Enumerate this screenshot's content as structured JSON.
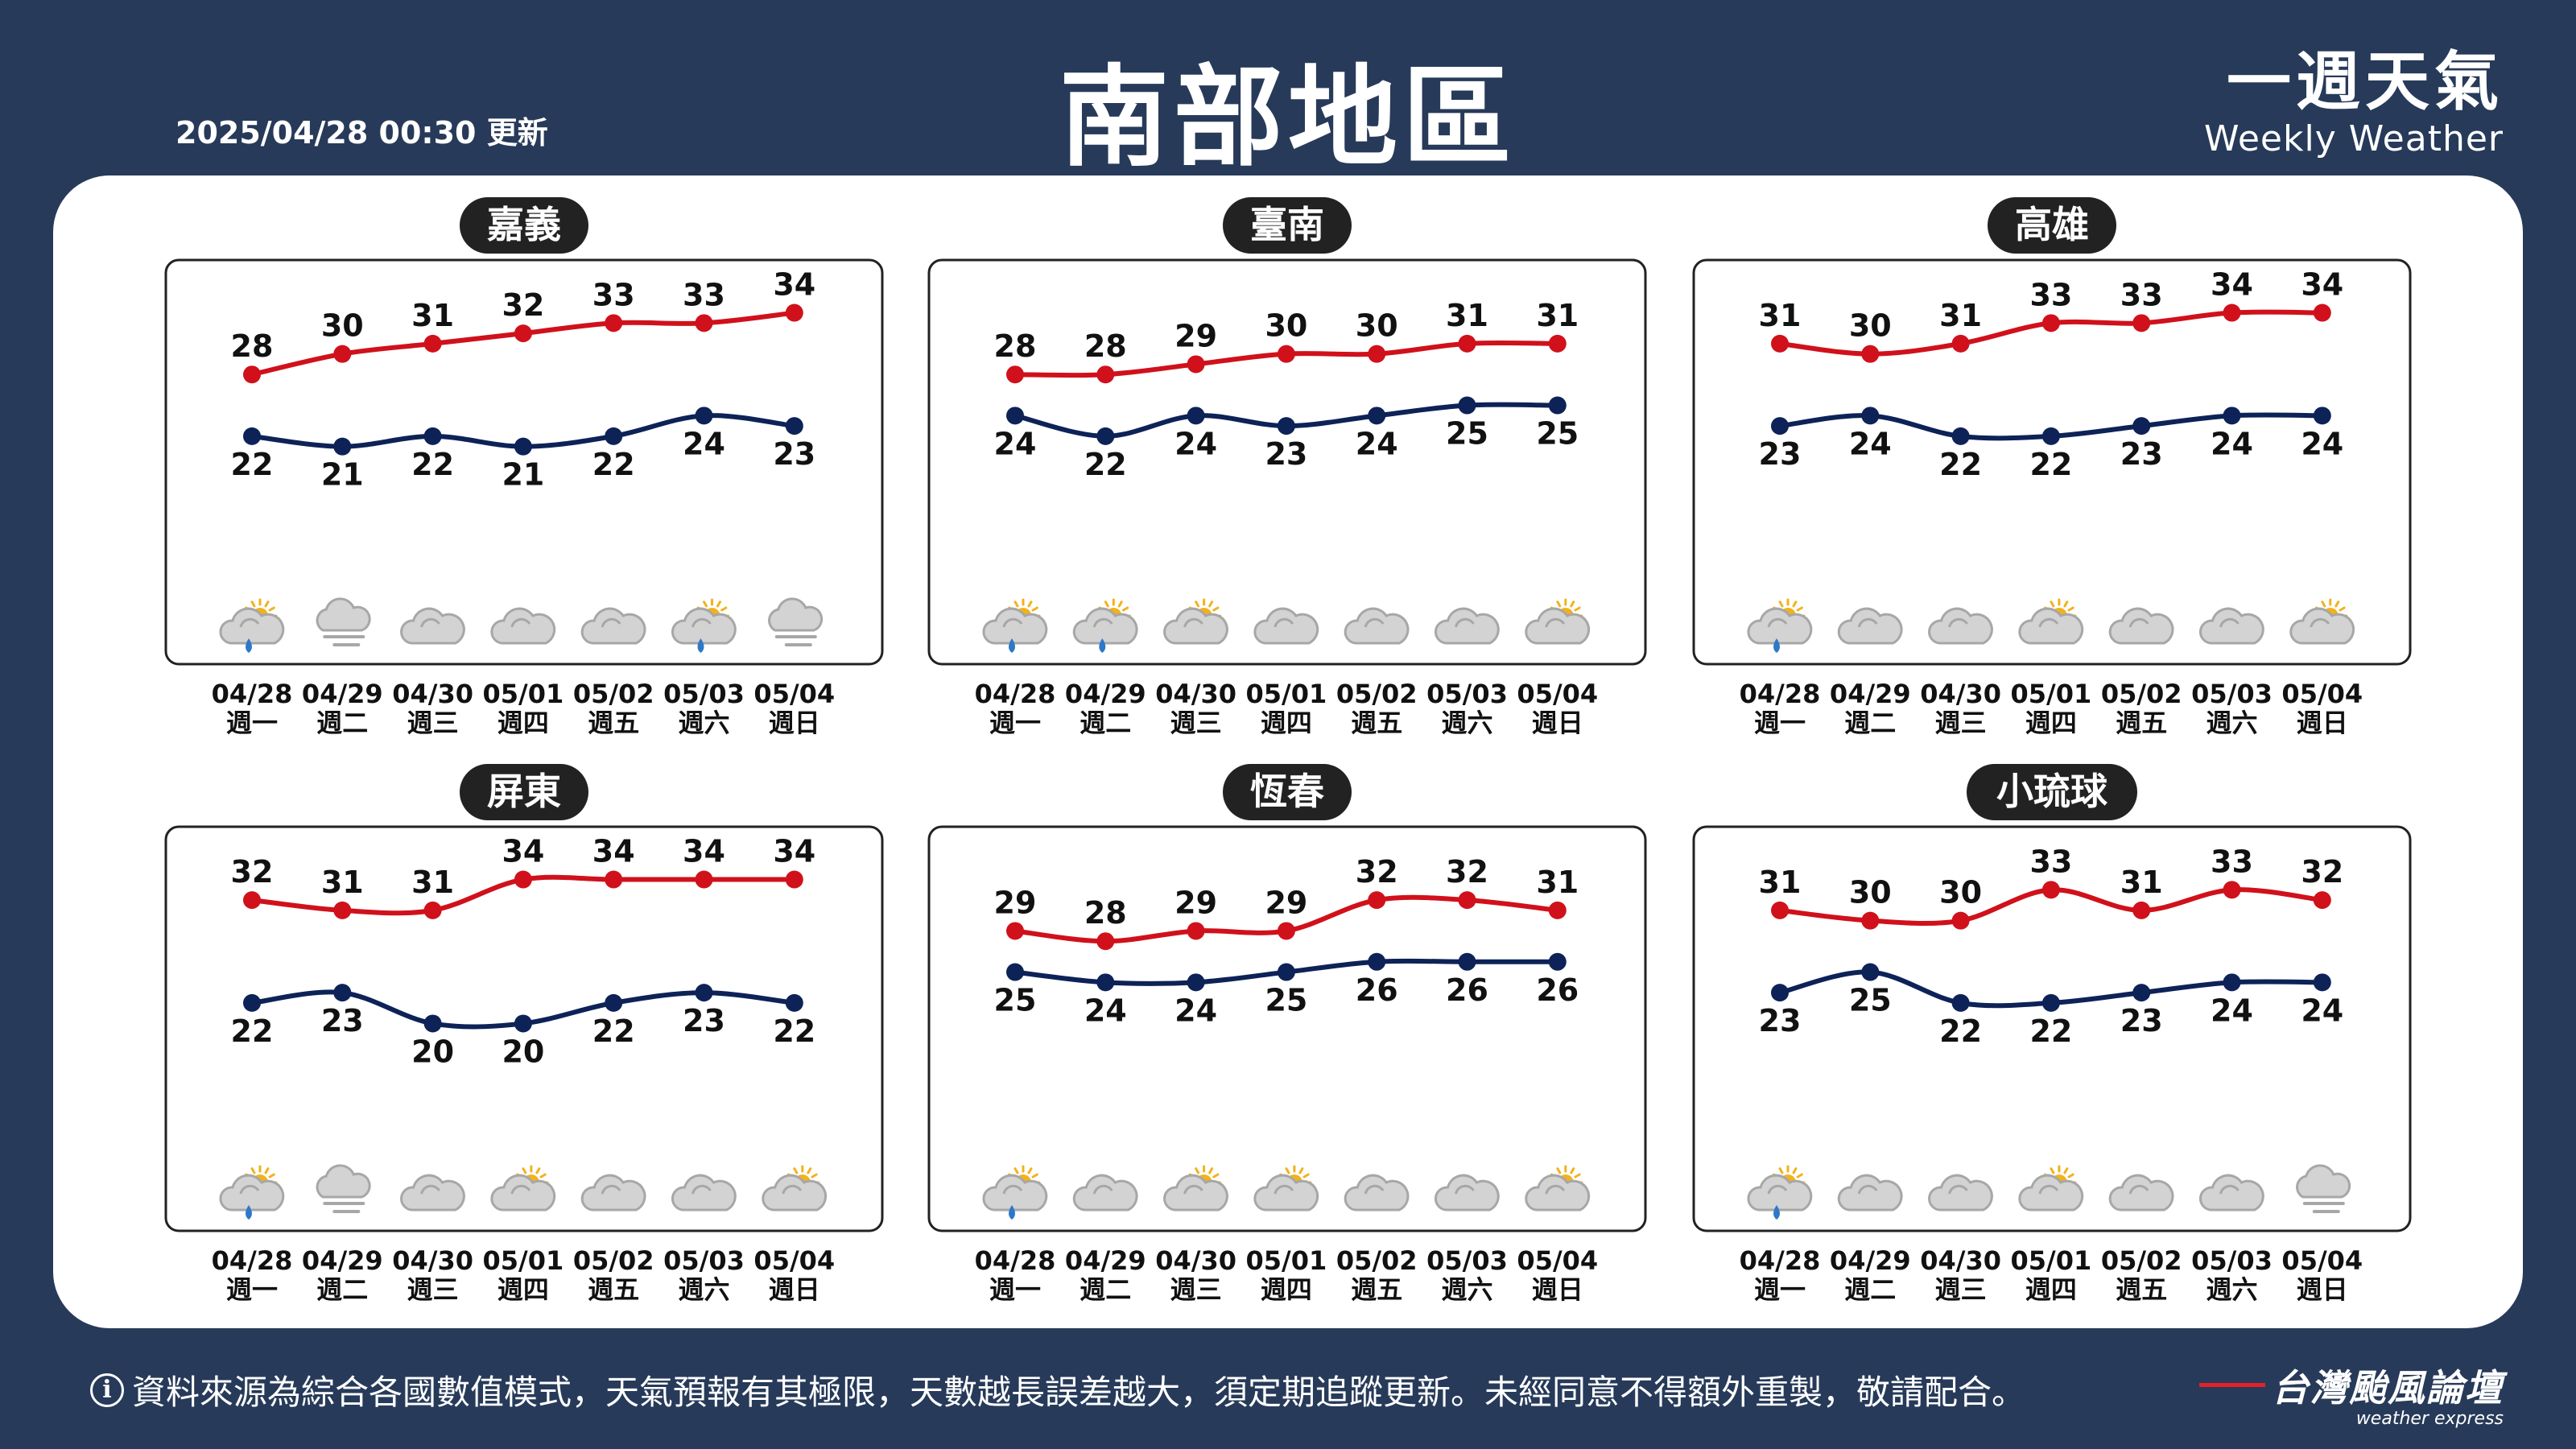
{
  "header": {
    "updated": "2025/04/28 00:30 更新",
    "title": "南部地區",
    "brand_zh": "一週天氣",
    "brand_en": "Weekly Weather"
  },
  "footer": {
    "info_icon": "info-icon",
    "disclaimer": "資料來源為綜合各國數值模式，天氣預報有其極限，天數越長誤差越大，須定期追蹤更新。未經同意不得額外重製，敬請配合。",
    "logo_zh": "台灣颱風論壇",
    "logo_en": "weather express"
  },
  "colors": {
    "high": "#d0111b",
    "low": "#0d2257",
    "background": "#273a59",
    "title_pill": "#222222"
  },
  "chart_data": [
    {
      "type": "line",
      "title": "嘉義",
      "categories": [
        "04/28",
        "04/29",
        "04/30",
        "05/01",
        "05/02",
        "05/03",
        "05/04"
      ],
      "days": [
        "週一",
        "週二",
        "週三",
        "週四",
        "週五",
        "週六",
        "週日"
      ],
      "series": [
        {
          "values": [
            28,
            30,
            31,
            32,
            33,
            33,
            34
          ]
        },
        {
          "values": [
            22,
            21,
            22,
            21,
            22,
            24,
            23
          ]
        }
      ],
      "weather": [
        "partly-sunny-rain",
        "fog",
        "cloudy",
        "cloudy",
        "cloudy",
        "partly-sunny-rain",
        "fog"
      ]
    },
    {
      "type": "line",
      "title": "臺南",
      "categories": [
        "04/28",
        "04/29",
        "04/30",
        "05/01",
        "05/02",
        "05/03",
        "05/04"
      ],
      "days": [
        "週一",
        "週二",
        "週三",
        "週四",
        "週五",
        "週六",
        "週日"
      ],
      "series": [
        {
          "values": [
            28,
            28,
            29,
            30,
            30,
            31,
            31
          ]
        },
        {
          "values": [
            24,
            22,
            24,
            23,
            24,
            25,
            25
          ]
        }
      ],
      "weather": [
        "partly-sunny-rain",
        "partly-sunny-rain",
        "partly-sunny",
        "cloudy",
        "cloudy",
        "cloudy",
        "partly-sunny"
      ]
    },
    {
      "type": "line",
      "title": "高雄",
      "categories": [
        "04/28",
        "04/29",
        "04/30",
        "05/01",
        "05/02",
        "05/03",
        "05/04"
      ],
      "days": [
        "週一",
        "週二",
        "週三",
        "週四",
        "週五",
        "週六",
        "週日"
      ],
      "series": [
        {
          "values": [
            31,
            30,
            31,
            33,
            33,
            34,
            34
          ]
        },
        {
          "values": [
            23,
            24,
            22,
            22,
            23,
            24,
            24
          ]
        }
      ],
      "weather": [
        "partly-sunny-rain",
        "cloudy",
        "cloudy",
        "partly-sunny",
        "cloudy",
        "cloudy",
        "partly-sunny"
      ]
    },
    {
      "type": "line",
      "title": "屏東",
      "categories": [
        "04/28",
        "04/29",
        "04/30",
        "05/01",
        "05/02",
        "05/03",
        "05/04"
      ],
      "days": [
        "週一",
        "週二",
        "週三",
        "週四",
        "週五",
        "週六",
        "週日"
      ],
      "series": [
        {
          "values": [
            32,
            31,
            31,
            34,
            34,
            34,
            34
          ]
        },
        {
          "values": [
            22,
            23,
            20,
            20,
            22,
            23,
            22
          ]
        }
      ],
      "weather": [
        "partly-sunny-rain",
        "fog",
        "cloudy",
        "partly-sunny",
        "cloudy",
        "cloudy",
        "partly-sunny"
      ]
    },
    {
      "type": "line",
      "title": "恆春",
      "categories": [
        "04/28",
        "04/29",
        "04/30",
        "05/01",
        "05/02",
        "05/03",
        "05/04"
      ],
      "days": [
        "週一",
        "週二",
        "週三",
        "週四",
        "週五",
        "週六",
        "週日"
      ],
      "series": [
        {
          "values": [
            29,
            28,
            29,
            29,
            32,
            32,
            31
          ]
        },
        {
          "values": [
            25,
            24,
            24,
            25,
            26,
            26,
            26
          ]
        }
      ],
      "weather": [
        "partly-sunny-rain",
        "cloudy",
        "partly-sunny",
        "partly-sunny",
        "cloudy",
        "cloudy",
        "partly-sunny"
      ]
    },
    {
      "type": "line",
      "title": "小琉球",
      "categories": [
        "04/28",
        "04/29",
        "04/30",
        "05/01",
        "05/02",
        "05/03",
        "05/04"
      ],
      "days": [
        "週一",
        "週二",
        "週三",
        "週四",
        "週五",
        "週六",
        "週日"
      ],
      "series": [
        {
          "values": [
            31,
            30,
            30,
            33,
            31,
            33,
            32
          ]
        },
        {
          "values": [
            23,
            25,
            22,
            22,
            23,
            24,
            24
          ]
        }
      ],
      "weather": [
        "partly-sunny-rain",
        "cloudy",
        "cloudy",
        "partly-sunny",
        "cloudy",
        "cloudy",
        "fog"
      ]
    }
  ]
}
